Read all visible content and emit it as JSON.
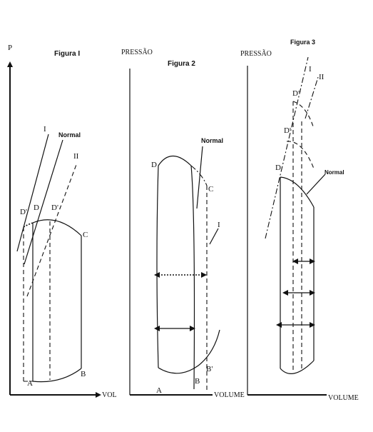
{
  "figure1": {
    "title": "Figura I",
    "y_axis_label": "P",
    "x_axis_label": "VOL",
    "labels": {
      "line_I": "I",
      "line_normal": "Normal",
      "line_II": "II",
      "point_D_prime_left": "D'",
      "point_D": "D",
      "point_D_prime_right": "D'",
      "point_C": "C",
      "point_A": "A",
      "point_B": "B"
    }
  },
  "figure2": {
    "title": "Figura 2",
    "y_axis_label": "PRESSÃO",
    "x_axis_label": "VOLUME",
    "labels": {
      "point_D": "D",
      "line_normal": "Normal",
      "point_C": "C",
      "line_I": "I",
      "point_A": "A",
      "point_B": "B",
      "point_B_prime": "B'"
    }
  },
  "figure3": {
    "title": "Figura 3",
    "y_axis_label": "PRESSÃO",
    "x_axis_label": "VOLUME",
    "labels": {
      "line_I": "I",
      "line_II": "II",
      "point_D_double_prime": "D''",
      "point_D_prime": "D'",
      "point_D": "D",
      "line_normal": "Normal"
    }
  }
}
